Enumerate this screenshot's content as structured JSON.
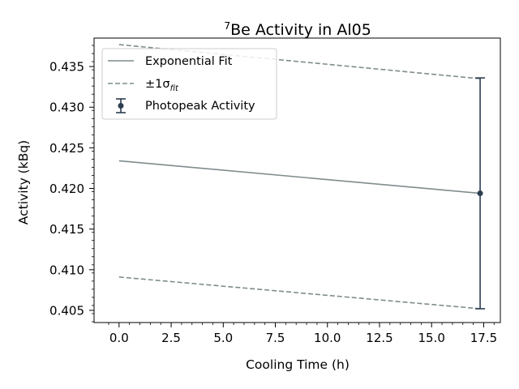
{
  "chart_data": {
    "type": "line",
    "title_prefix": "7",
    "title": "Be Activity in Al05",
    "xlabel": "Cooling Time (h)",
    "ylabel": "Activity (kBq)",
    "xlim": [
      -1.2,
      18.3
    ],
    "ylim": [
      0.4035,
      0.4385
    ],
    "x_ticks": [
      0.0,
      2.5,
      5.0,
      7.5,
      10.0,
      12.5,
      15.0,
      17.5
    ],
    "x_tick_labels": [
      "0.0",
      "2.5",
      "5.0",
      "7.5",
      "10.0",
      "12.5",
      "15.0",
      "17.5"
    ],
    "y_ticks": [
      0.405,
      0.41,
      0.415,
      0.42,
      0.425,
      0.43,
      0.435
    ],
    "y_tick_labels": [
      "0.405",
      "0.410",
      "0.415",
      "0.420",
      "0.425",
      "0.430",
      "0.435"
    ],
    "grid": false,
    "legend_placement": "upper-left",
    "series": [
      {
        "name": "Exponential Fit",
        "style": "solid",
        "color": "#7f8c8d",
        "x": [
          0.0,
          17.33
        ],
        "y": [
          0.4234,
          0.4194
        ]
      },
      {
        "name": "±1σ",
        "name_subscript": "fit",
        "style": "dashed",
        "color": "#7f8c8d",
        "lines": [
          {
            "x": [
              0.0,
              17.33
            ],
            "y": [
              0.4377,
              0.4335
            ]
          },
          {
            "x": [
              0.0,
              17.33
            ],
            "y": [
              0.4091,
              0.4052
            ]
          }
        ]
      },
      {
        "name": "Photopeak Activity",
        "style": "errorbar",
        "color": "#2c3e50",
        "points": [
          {
            "x": 17.33,
            "y": 0.4194,
            "yerr": 0.0142
          }
        ]
      }
    ]
  }
}
